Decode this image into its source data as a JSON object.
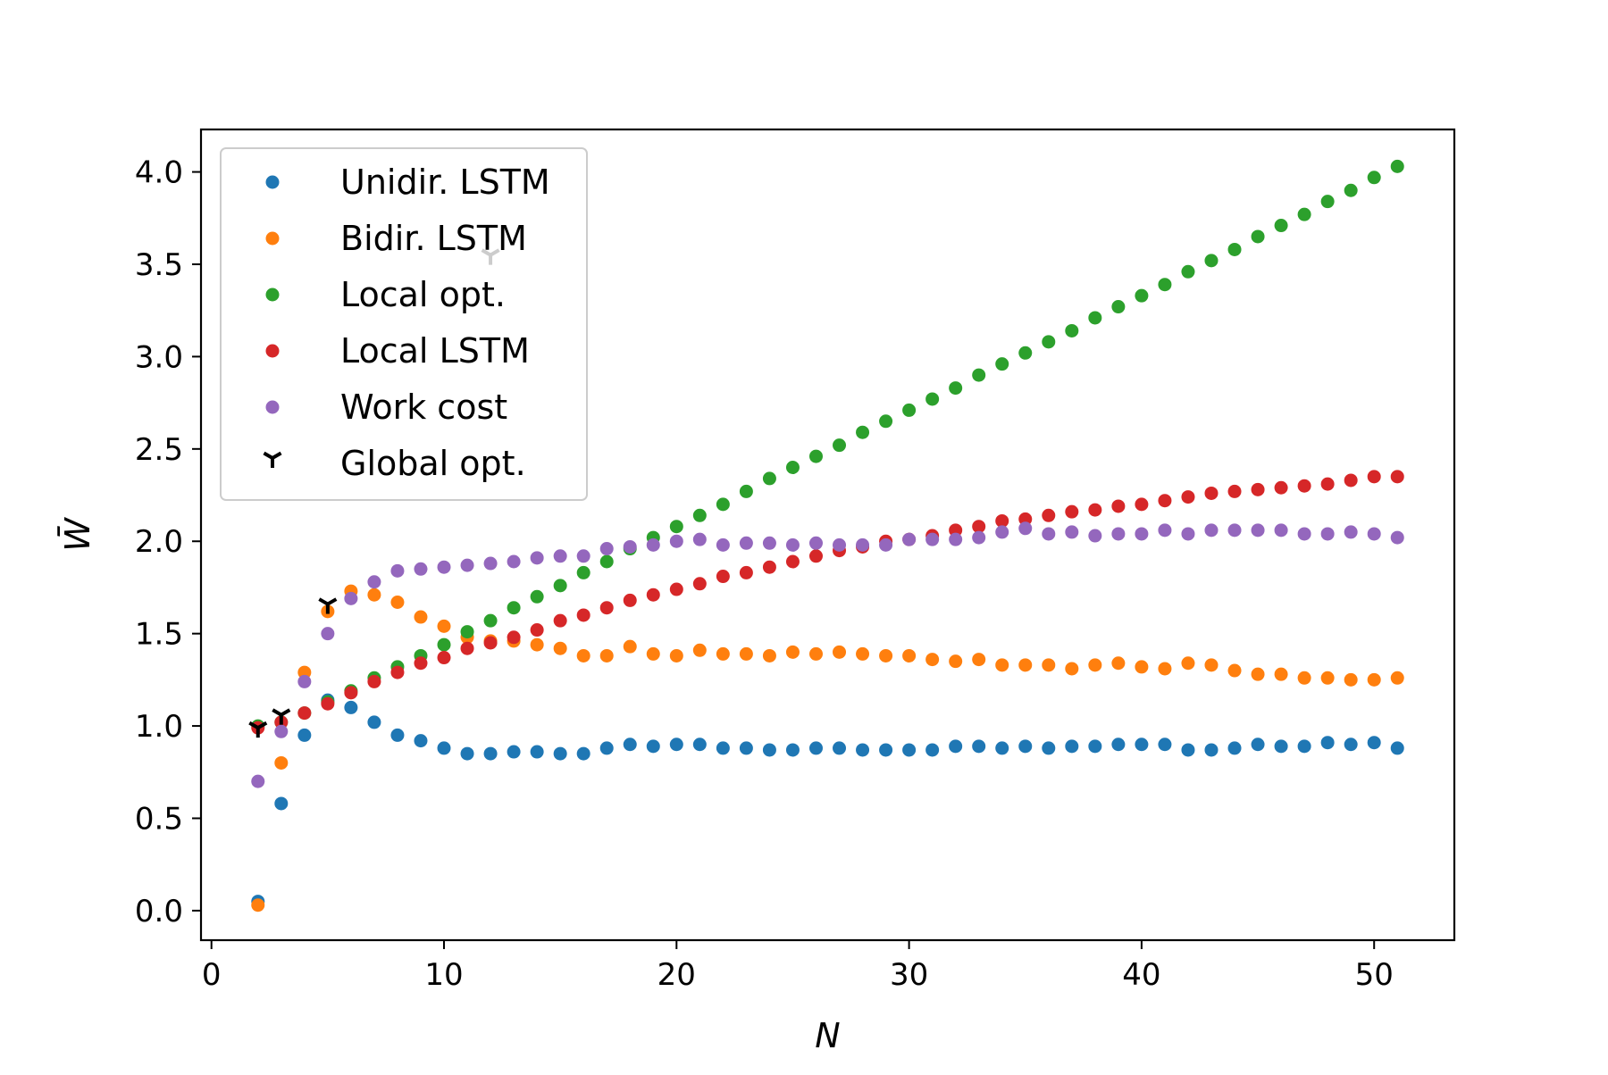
{
  "chart_data": {
    "type": "scatter",
    "title": "",
    "xlabel": "N",
    "ylabel": "W̄",
    "xlim": [
      -0.45,
      53.45
    ],
    "ylim": [
      -0.16,
      4.23
    ],
    "xticks": [
      0,
      10,
      20,
      30,
      40,
      50
    ],
    "yticks": [
      0.0,
      0.5,
      1.0,
      1.5,
      2.0,
      2.5,
      3.0,
      3.5,
      4.0
    ],
    "xtick_labels": [
      "0",
      "10",
      "20",
      "30",
      "40",
      "50"
    ],
    "ytick_labels": [
      "0.0",
      "0.5",
      "1.0",
      "1.5",
      "2.0",
      "2.5",
      "3.0",
      "3.5",
      "4.0"
    ],
    "grid": false,
    "legend_position": "upper-left",
    "series": [
      {
        "name": "Unidir. LSTM",
        "color": "#1f77b4",
        "marker": "dot",
        "x": [
          2,
          3,
          4,
          5,
          6,
          7,
          8,
          9,
          10,
          11,
          12,
          13,
          14,
          15,
          16,
          17,
          18,
          19,
          20,
          21,
          22,
          23,
          24,
          25,
          26,
          27,
          28,
          29,
          30,
          31,
          32,
          33,
          34,
          35,
          36,
          37,
          38,
          39,
          40,
          41,
          42,
          43,
          44,
          45,
          46,
          47,
          48,
          49,
          50,
          51
        ],
        "y": [
          0.05,
          0.58,
          0.95,
          1.14,
          1.1,
          1.02,
          0.95,
          0.92,
          0.88,
          0.85,
          0.85,
          0.86,
          0.86,
          0.85,
          0.85,
          0.88,
          0.9,
          0.89,
          0.9,
          0.9,
          0.88,
          0.88,
          0.87,
          0.87,
          0.88,
          0.88,
          0.87,
          0.87,
          0.87,
          0.87,
          0.89,
          0.89,
          0.88,
          0.89,
          0.88,
          0.89,
          0.89,
          0.9,
          0.9,
          0.9,
          0.87,
          0.87,
          0.88,
          0.9,
          0.89,
          0.89,
          0.91,
          0.9,
          0.91,
          0.88
        ]
      },
      {
        "name": "Bidir. LSTM",
        "color": "#ff7f0e",
        "marker": "dot",
        "x": [
          2,
          3,
          4,
          5,
          6,
          7,
          8,
          9,
          10,
          11,
          12,
          13,
          14,
          15,
          16,
          17,
          18,
          19,
          20,
          21,
          22,
          23,
          24,
          25,
          26,
          27,
          28,
          29,
          30,
          31,
          32,
          33,
          34,
          35,
          36,
          37,
          38,
          39,
          40,
          41,
          42,
          43,
          44,
          45,
          46,
          47,
          48,
          49,
          50,
          51
        ],
        "y": [
          0.03,
          0.8,
          1.29,
          1.62,
          1.73,
          1.71,
          1.67,
          1.59,
          1.54,
          1.48,
          1.46,
          1.46,
          1.44,
          1.42,
          1.38,
          1.38,
          1.43,
          1.39,
          1.38,
          1.41,
          1.39,
          1.39,
          1.38,
          1.4,
          1.39,
          1.4,
          1.39,
          1.38,
          1.38,
          1.36,
          1.35,
          1.36,
          1.33,
          1.33,
          1.33,
          1.31,
          1.33,
          1.34,
          1.32,
          1.31,
          1.34,
          1.33,
          1.3,
          1.28,
          1.28,
          1.26,
          1.26,
          1.25,
          1.25,
          1.26
        ]
      },
      {
        "name": "Local opt.",
        "color": "#2ca02c",
        "marker": "dot",
        "x": [
          2,
          3,
          4,
          5,
          6,
          7,
          8,
          9,
          10,
          11,
          12,
          13,
          14,
          15,
          16,
          17,
          18,
          19,
          20,
          21,
          22,
          23,
          24,
          25,
          26,
          27,
          28,
          29,
          30,
          31,
          32,
          33,
          34,
          35,
          36,
          37,
          38,
          39,
          40,
          41,
          42,
          43,
          44,
          45,
          46,
          47,
          48,
          49,
          50,
          51
        ],
        "y": [
          1.0,
          1.02,
          1.07,
          1.13,
          1.19,
          1.26,
          1.32,
          1.38,
          1.44,
          1.51,
          1.57,
          1.64,
          1.7,
          1.76,
          1.83,
          1.89,
          1.96,
          2.02,
          2.08,
          2.14,
          2.2,
          2.27,
          2.34,
          2.4,
          2.46,
          2.52,
          2.59,
          2.65,
          2.71,
          2.77,
          2.83,
          2.9,
          2.96,
          3.02,
          3.08,
          3.14,
          3.21,
          3.27,
          3.33,
          3.39,
          3.46,
          3.52,
          3.58,
          3.65,
          3.71,
          3.77,
          3.84,
          3.9,
          3.97,
          4.03
        ]
      },
      {
        "name": "Local LSTM",
        "color": "#d62728",
        "marker": "dot",
        "x": [
          2,
          3,
          4,
          5,
          6,
          7,
          8,
          9,
          10,
          11,
          12,
          13,
          14,
          15,
          16,
          17,
          18,
          19,
          20,
          21,
          22,
          23,
          24,
          25,
          26,
          27,
          28,
          29,
          30,
          31,
          32,
          33,
          34,
          35,
          36,
          37,
          38,
          39,
          40,
          41,
          42,
          43,
          44,
          45,
          46,
          47,
          48,
          49,
          50,
          51
        ],
        "y": [
          0.99,
          1.02,
          1.07,
          1.12,
          1.18,
          1.24,
          1.29,
          1.34,
          1.37,
          1.42,
          1.45,
          1.48,
          1.52,
          1.57,
          1.6,
          1.64,
          1.68,
          1.71,
          1.74,
          1.77,
          1.81,
          1.83,
          1.86,
          1.89,
          1.92,
          1.95,
          1.97,
          2.0,
          2.01,
          2.03,
          2.06,
          2.08,
          2.11,
          2.12,
          2.14,
          2.16,
          2.17,
          2.19,
          2.2,
          2.22,
          2.24,
          2.26,
          2.27,
          2.28,
          2.29,
          2.3,
          2.31,
          2.33,
          2.35,
          2.35
        ]
      },
      {
        "name": "Work cost",
        "color": "#9467bd",
        "marker": "dot",
        "x": [
          2,
          3,
          4,
          5,
          6,
          7,
          8,
          9,
          10,
          11,
          12,
          13,
          14,
          15,
          16,
          17,
          18,
          19,
          20,
          21,
          22,
          23,
          24,
          25,
          26,
          27,
          28,
          29,
          30,
          31,
          32,
          33,
          34,
          35,
          36,
          37,
          38,
          39,
          40,
          41,
          42,
          43,
          44,
          45,
          46,
          47,
          48,
          49,
          50,
          51
        ],
        "y": [
          0.7,
          0.97,
          1.24,
          1.5,
          1.69,
          1.78,
          1.84,
          1.85,
          1.86,
          1.87,
          1.88,
          1.89,
          1.91,
          1.92,
          1.92,
          1.96,
          1.97,
          1.98,
          2.0,
          2.01,
          1.98,
          1.99,
          1.99,
          1.98,
          1.99,
          1.98,
          1.98,
          1.98,
          2.01,
          2.01,
          2.01,
          2.02,
          2.05,
          2.07,
          2.04,
          2.05,
          2.03,
          2.04,
          2.04,
          2.06,
          2.04,
          2.06,
          2.06,
          2.06,
          2.06,
          2.04,
          2.04,
          2.05,
          2.04,
          2.02
        ]
      },
      {
        "name": "Global opt.",
        "color": "#000000",
        "marker": "tri_down",
        "x": [
          2,
          3,
          5,
          12
        ],
        "y": [
          0.99,
          1.06,
          1.66,
          3.55
        ]
      }
    ]
  }
}
